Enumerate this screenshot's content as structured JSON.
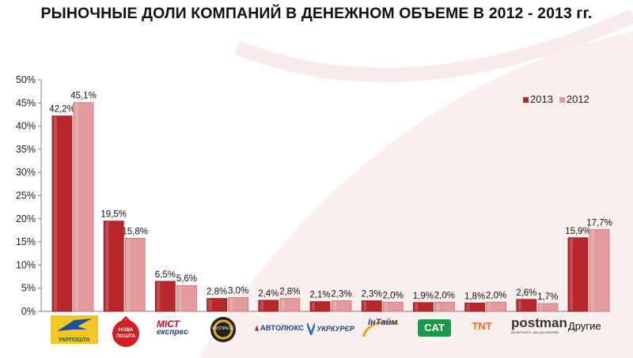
{
  "title": "РЫНОЧНЫЕ ДОЛИ КОМПАНИЙ В ДЕНЕЖНОМ ОБЪЕМЕ В 2012 - 2013 гг.",
  "colors": {
    "s2013": "#b8272b",
    "s2012": "#e39a9c"
  },
  "chart_data": {
    "type": "bar",
    "title": "РЫНОЧНЫЕ ДОЛИ КОМПАНИЙ В ДЕНЕЖНОМ ОБЪЕМЕ В 2012 - 2013 гг.",
    "categories": [
      "Укрпошта",
      "Нова Пошта",
      "Міст Експрес",
      "Експрес",
      "Автолюкс",
      "Укркурьер",
      "ІнТайм",
      "САТ",
      "TNT",
      "postman",
      "Другие"
    ],
    "series": [
      {
        "name": "2013",
        "values": [
          42.2,
          19.5,
          6.5,
          2.8,
          2.4,
          2.1,
          2.3,
          1.9,
          1.8,
          2.6,
          15.9
        ],
        "labels": [
          "42,2%",
          "19,5%",
          "6,5%",
          "2,8%",
          "2,4%",
          "2,1%",
          "2,3%",
          "1,9%",
          "1,8%",
          "2,6%",
          "15,9%"
        ]
      },
      {
        "name": "2012",
        "values": [
          45.1,
          15.8,
          5.6,
          3.0,
          2.8,
          2.3,
          2.0,
          2.0,
          2.0,
          1.7,
          17.7
        ],
        "labels": [
          "45,1%",
          "15,8%",
          "5,6%",
          "3,0%",
          "2,8%",
          "2,3%",
          "2,0%",
          "2,0%",
          "2,0%",
          "1,7%",
          "17,7%"
        ]
      }
    ],
    "ylim": [
      0,
      50
    ],
    "yticks": [
      "0%",
      "5%",
      "10%",
      "15%",
      "20%",
      "25%",
      "30%",
      "35%",
      "40%",
      "45%",
      "50%"
    ],
    "legend_position": "top-right",
    "grid": false
  },
  "logos": {
    "ukrposhta": "УКРПОШТА",
    "nova_poshta_1": "НОВА",
    "nova_poshta_2": "ПОШТА",
    "mist_1": "МІСТ",
    "mist_2": "експрес",
    "express": "ЕКСПРЕСС",
    "avtolux": "АВТОЛЮКС",
    "ukrkurier": "УКРКУРЄР",
    "intime": "ІнТайм",
    "cat": "CAT",
    "tnt": "TNT",
    "postman": "postman",
    "postman_sub": "ви мечтаете, мы доставляем",
    "other": "Другие"
  }
}
